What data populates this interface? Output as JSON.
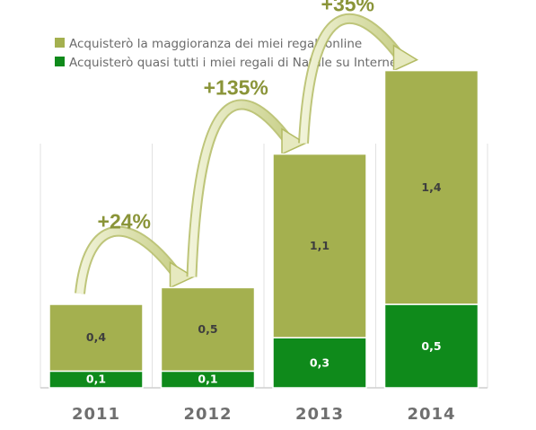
{
  "chart_data": {
    "type": "bar",
    "stacked": true,
    "categories": [
      "2011",
      "2012",
      "2013",
      "2014"
    ],
    "series": [
      {
        "name": "Acquisterò quasi tutti i miei regali di Natale su Internet",
        "values": [
          0.1,
          0.1,
          0.3,
          0.5
        ],
        "labels": [
          "0,1",
          "0,1",
          "0,3",
          "0,5"
        ],
        "color": "#0f8a1b"
      },
      {
        "name": "Acquisterò la maggioranza dei miei regali online",
        "values": [
          0.4,
          0.5,
          1.1,
          1.4
        ],
        "labels": [
          "0,4",
          "0,5",
          "1,1",
          "1,4"
        ],
        "color": "#a4b04f"
      }
    ],
    "annotations": [
      {
        "text": "+24%",
        "from": "2011",
        "to": "2012"
      },
      {
        "text": "+135%",
        "from": "2012",
        "to": "2013"
      },
      {
        "text": "+35%",
        "from": "2013",
        "to": "2014"
      }
    ],
    "legend": "top-left",
    "grid": true,
    "ylim": [
      0,
      2
    ]
  }
}
